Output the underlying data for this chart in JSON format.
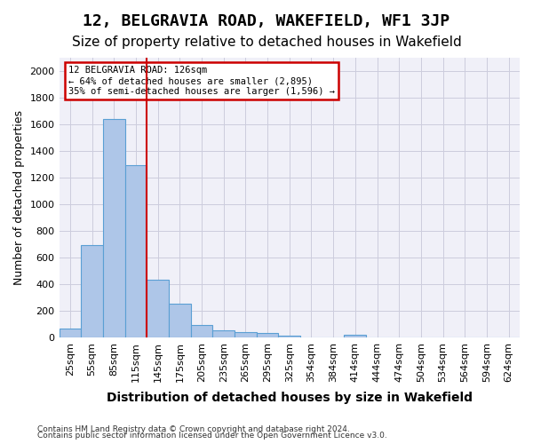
{
  "title1": "12, BELGRAVIA ROAD, WAKEFIELD, WF1 3JP",
  "title2": "Size of property relative to detached houses in Wakefield",
  "xlabel": "Distribution of detached houses by size in Wakefield",
  "ylabel": "Number of detached properties",
  "footnote1": "Contains HM Land Registry data © Crown copyright and database right 2024.",
  "footnote2": "Contains public sector information licensed under the Open Government Licence v3.0.",
  "categories": [
    "25sqm",
    "55sqm",
    "85sqm",
    "115sqm",
    "145sqm",
    "175sqm",
    "205sqm",
    "235sqm",
    "265sqm",
    "295sqm",
    "325sqm",
    "354sqm",
    "384sqm",
    "414sqm",
    "444sqm",
    "474sqm",
    "504sqm",
    "534sqm",
    "564sqm",
    "594sqm",
    "624sqm"
  ],
  "values": [
    65,
    690,
    1640,
    1290,
    435,
    255,
    90,
    55,
    40,
    30,
    15,
    0,
    0,
    20,
    0,
    0,
    0,
    0,
    0,
    0,
    0
  ],
  "bar_color": "#aec6e8",
  "bar_edge_color": "#5a9fd4",
  "vline_x": 3.5,
  "vline_color": "#cc0000",
  "annotation_text": "12 BELGRAVIA ROAD: 126sqm\n← 64% of detached houses are smaller (2,895)\n35% of semi-detached houses are larger (1,596) →",
  "annotation_box_color": "#cc0000",
  "annotation_text_color": "#000000",
  "ylim": [
    0,
    2100
  ],
  "yticks": [
    0,
    200,
    400,
    600,
    800,
    1000,
    1200,
    1400,
    1600,
    1800,
    2000
  ],
  "bg_color": "#f0f0f8",
  "grid_color": "#ccccdd",
  "title1_fontsize": 13,
  "title2_fontsize": 11,
  "xlabel_fontsize": 10,
  "ylabel_fontsize": 9,
  "tick_fontsize": 8
}
